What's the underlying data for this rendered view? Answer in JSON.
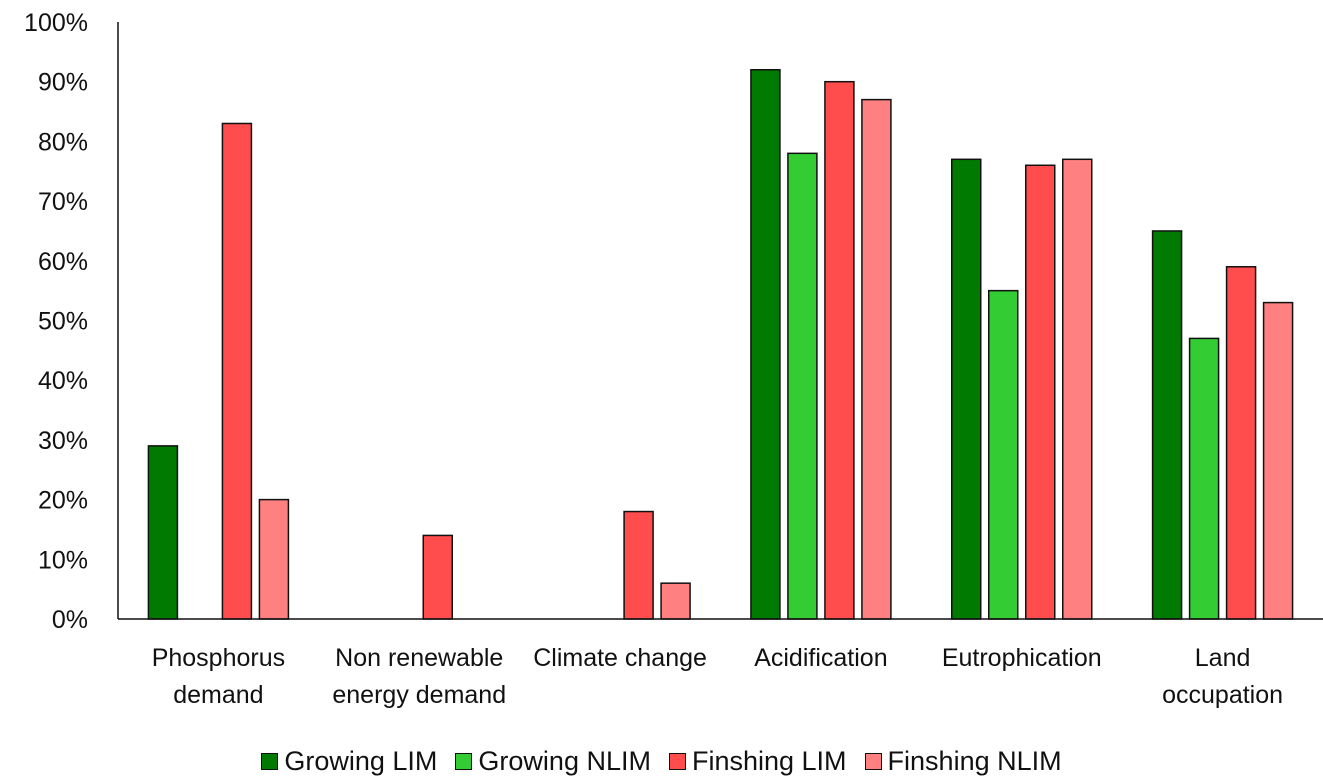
{
  "chart_data": {
    "type": "bar",
    "title": "",
    "xlabel": "",
    "ylabel": "",
    "ylim": [
      0,
      100
    ],
    "y_ticks": [
      "0%",
      "10%",
      "20%",
      "30%",
      "40%",
      "50%",
      "60%",
      "70%",
      "80%",
      "90%",
      "100%"
    ],
    "grid": false,
    "legend_position": "bottom",
    "categories": [
      [
        "Phosphorus",
        "demand"
      ],
      [
        "Non renewable",
        "energy demand"
      ],
      [
        "Climate change"
      ],
      [
        "Acidification"
      ],
      [
        "Eutrophication"
      ],
      [
        "Land",
        "occupation"
      ]
    ],
    "series": [
      {
        "name": "Growing LIM",
        "color": "#007a00",
        "values": [
          29,
          0,
          0,
          92,
          77,
          65
        ]
      },
      {
        "name": "Growing NLIM",
        "color": "#33cc33",
        "values": [
          0,
          0,
          0,
          78,
          55,
          47
        ]
      },
      {
        "name": "Finshing LIM",
        "color": "#ff4d4d",
        "values": [
          83,
          14,
          18,
          90,
          76,
          59
        ]
      },
      {
        "name": "Finshing NLIM",
        "color": "#ff8080",
        "values": [
          20,
          0,
          6,
          87,
          77,
          53
        ]
      }
    ]
  }
}
